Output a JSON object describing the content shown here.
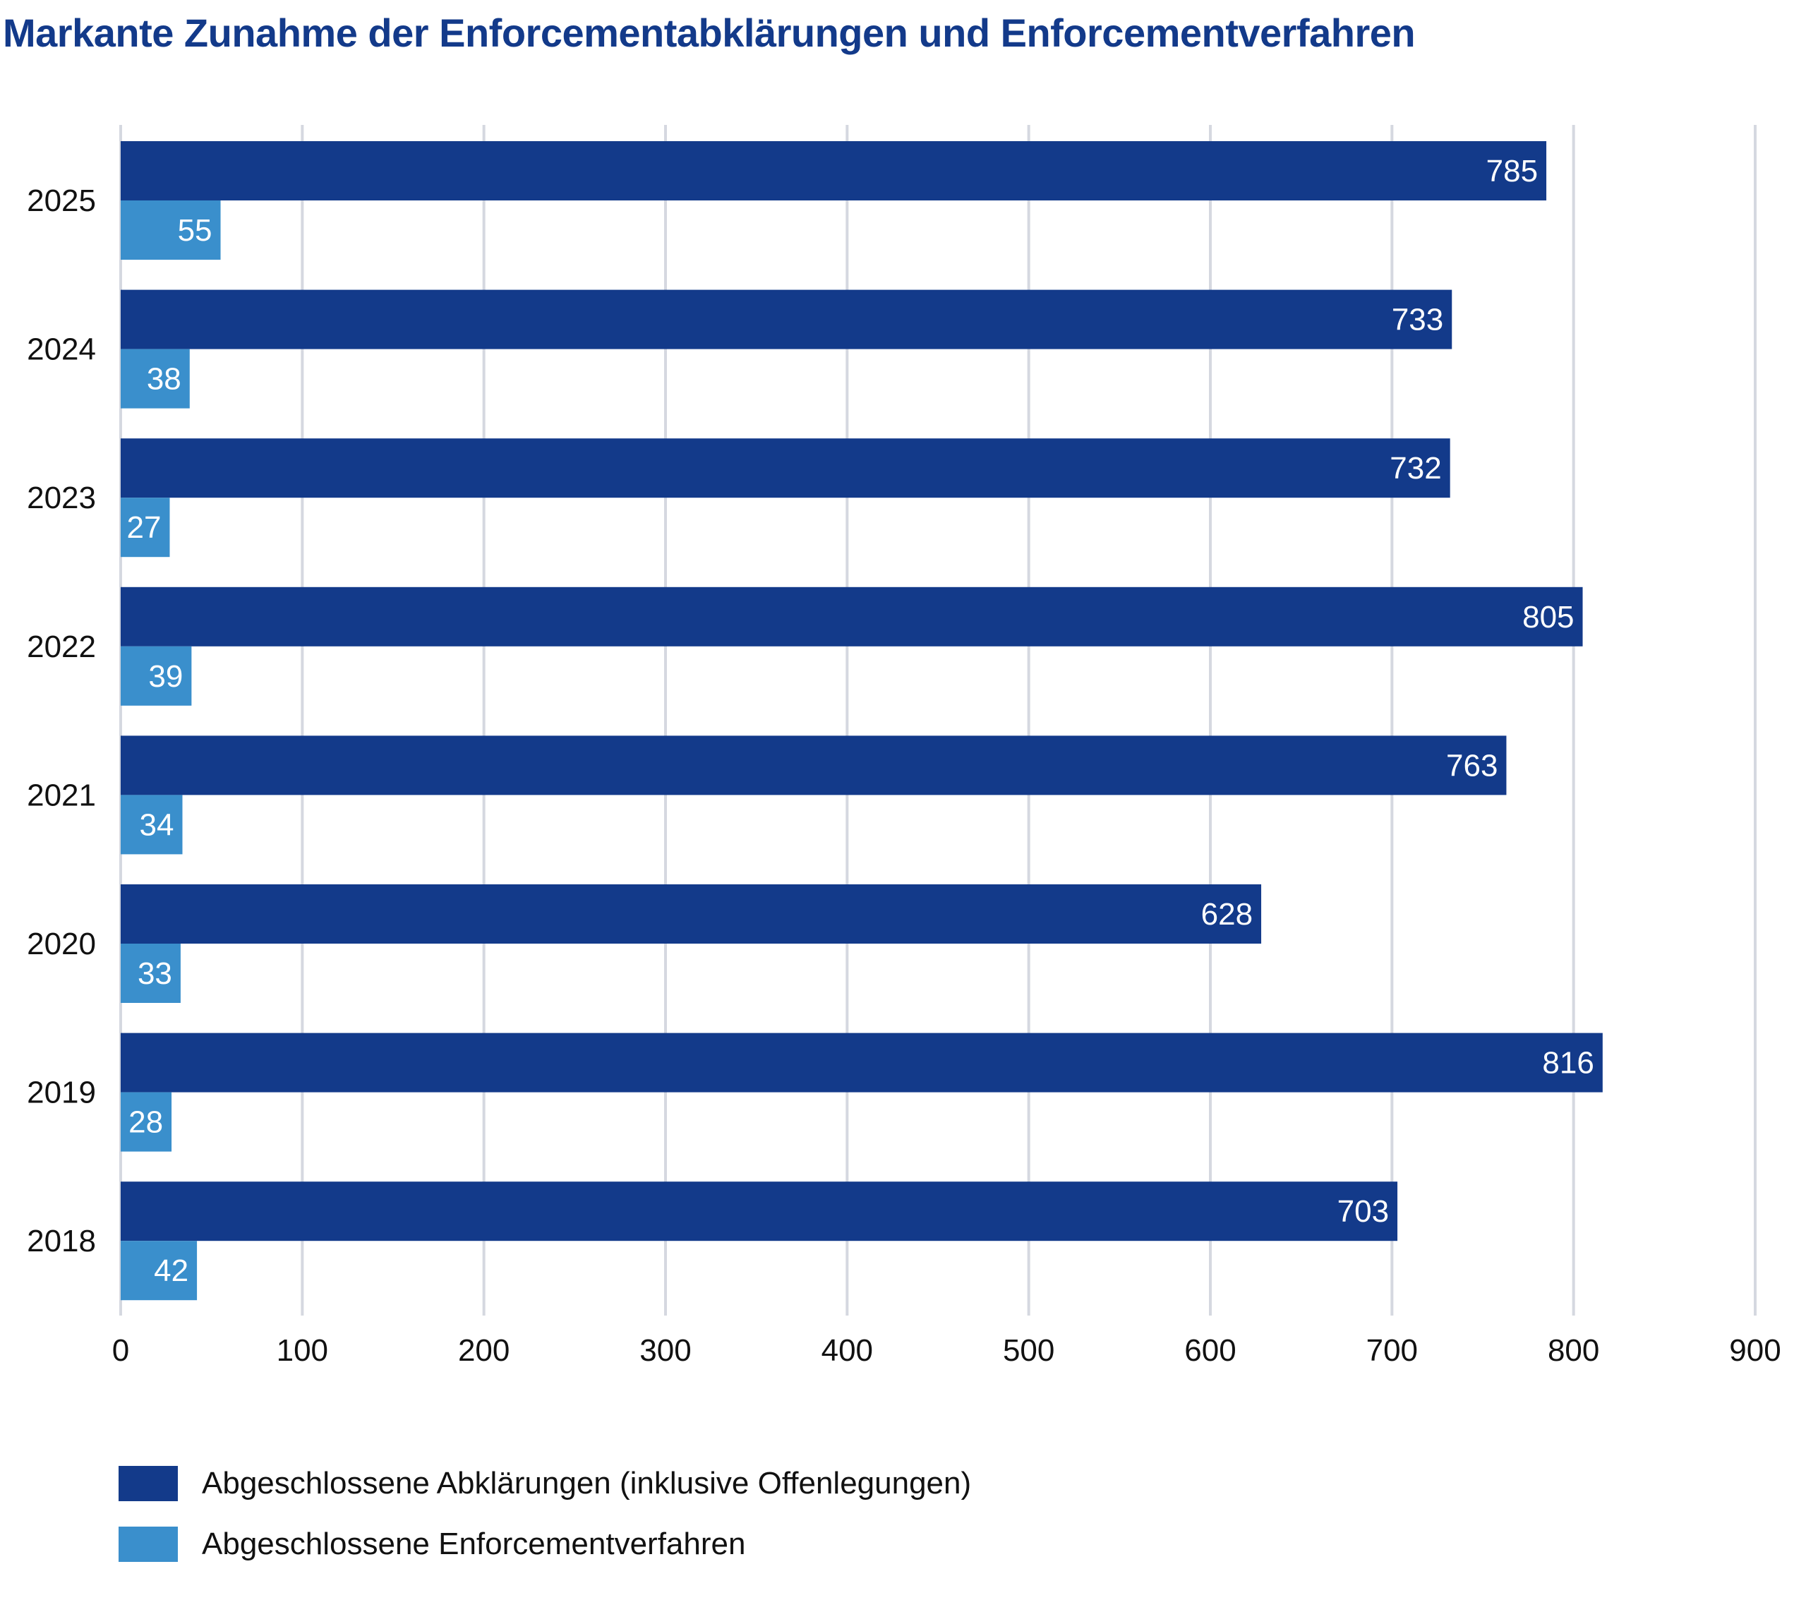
{
  "title": "Markante Zunahme der Enforcementabklärungen und Enforcementverfahren",
  "chart_data": {
    "type": "bar",
    "orientation": "horizontal",
    "title": "Markante Zunahme der Enforcementabklärungen und Enforcementverfahren",
    "categories": [
      "2025",
      "2024",
      "2023",
      "2022",
      "2021",
      "2020",
      "2019",
      "2018"
    ],
    "series": [
      {
        "name": "Abgeschlossene Abklärungen (inklusive Offenlegungen)",
        "color": "#133a8a",
        "values": [
          785,
          733,
          732,
          805,
          763,
          628,
          816,
          703
        ]
      },
      {
        "name": "Abgeschlossene Enforcementverfahren",
        "color": "#3a8fcc",
        "values": [
          55,
          38,
          27,
          39,
          34,
          33,
          28,
          42
        ]
      }
    ],
    "xlim": [
      0,
      900
    ],
    "xticks": [
      "0",
      "100",
      "200",
      "300",
      "400",
      "500",
      "600",
      "700",
      "800",
      "900"
    ],
    "xlabel": "",
    "ylabel": "",
    "grid": "vertical",
    "legend_position": "bottom-left",
    "data_labels": true
  }
}
